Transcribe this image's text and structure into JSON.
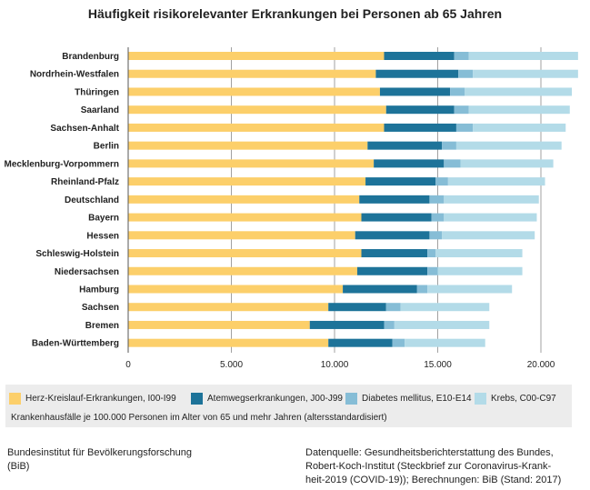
{
  "title": "Häufigkeit risikorelevanter Erkrankungen bei Personen ab 65 Jahren",
  "chart_data": {
    "type": "bar",
    "orientation": "horizontal",
    "stacked": true,
    "title": "Häufigkeit risikorelevanter Erkrankungen bei Personen ab 65 Jahren",
    "categories": [
      "Brandenburg",
      "Nordrhein-Westfalen",
      "Thüringen",
      "Saarland",
      "Sachsen-Anhalt",
      "Berlin",
      "Mecklenburg-Vorpommern",
      "Rheinland-Pfalz",
      "Deutschland",
      "Bayern",
      "Hessen",
      "Schleswig-Holstein",
      "Niedersachsen",
      "Hamburg",
      "Sachsen",
      "Bremen",
      "Baden-Württemberg"
    ],
    "series": [
      {
        "name": "Herz-Kreislauf-Erkrankungen, I00-I99",
        "color": "#fccf6a",
        "values": [
          12400,
          12000,
          12200,
          12500,
          12400,
          11600,
          11900,
          11500,
          11200,
          11300,
          11000,
          11300,
          11100,
          10400,
          9700,
          8800,
          9700
        ]
      },
      {
        "name": "Atemwegserkrankungen, J00-J99",
        "color": "#1d7399",
        "values": [
          3400,
          4000,
          3400,
          3300,
          3500,
          3600,
          3400,
          3400,
          3400,
          3400,
          3600,
          3200,
          3400,
          3600,
          2800,
          3600,
          3100
        ]
      },
      {
        "name": "Diabetes mellitus, E10-E14",
        "color": "#86bdd6",
        "values": [
          700,
          700,
          700,
          700,
          800,
          700,
          800,
          600,
          700,
          600,
          600,
          400,
          500,
          500,
          700,
          500,
          600
        ]
      },
      {
        "name": "Krebs, C00-C97",
        "color": "#b3dbe8",
        "values": [
          5300,
          5100,
          5200,
          4900,
          4500,
          5100,
          4500,
          4700,
          4600,
          4500,
          4500,
          4200,
          4100,
          4100,
          4300,
          4600,
          3900
        ]
      }
    ],
    "xlim": [
      0,
      22500
    ],
    "xticks": [
      "0",
      "5.000",
      "10.000",
      "15.000",
      "20.000"
    ],
    "xtick_values": [
      0,
      5000,
      10000,
      15000,
      20000
    ],
    "grid": true,
    "legend_position": "bottom"
  },
  "legend_note": "Krankenhausfälle je 100.000 Personen im Alter von 65 und mehr Jahren (altersstandardisiert)",
  "footer": {
    "left": [
      "Bundesinstitut für Bevölkerungsforschung",
      "(BiB)"
    ],
    "right": [
      "Datenquelle: Gesundheitsberichterstattung des Bundes,",
      "Robert-Koch-Institut (Steckbrief zur Coronavirus-Krank-",
      "heit-2019 (COVID-19)); Berechnungen: BiB (Stand: 2017)"
    ]
  }
}
